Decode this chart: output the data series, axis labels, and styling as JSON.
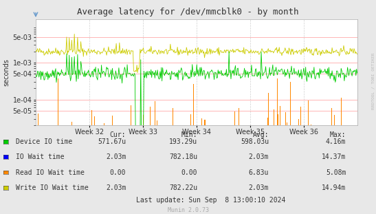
{
  "title": "Average latency for /dev/mmcblk0 - by month",
  "ylabel": "seconds",
  "background_color": "#e8e8e8",
  "plot_bg_color": "#ffffff",
  "grid_h_color": "#ff9999",
  "grid_v_color": "#cccccc",
  "x_weeks": [
    "Week 32",
    "Week 33",
    "Week 34",
    "Week 35",
    "Week 36"
  ],
  "yticks": [
    5e-05,
    0.0001,
    0.0005,
    0.001,
    0.005
  ],
  "ytick_labels": [
    "5e-05",
    "1e-04",
    "5e-04",
    "1e-03",
    "5e-03"
  ],
  "legend_entries": [
    {
      "label": "Device IO time",
      "color": "#00cc00"
    },
    {
      "label": "IO Wait time",
      "color": "#0000ff"
    },
    {
      "label": "Read IO Wait time",
      "color": "#ff8800"
    },
    {
      "label": "Write IO Wait time",
      "color": "#cccc00"
    }
  ],
  "table_headers": [
    "Cur:",
    "Min:",
    "Avg:",
    "Max:"
  ],
  "table_values": [
    [
      "571.67u",
      "193.29u",
      "598.03u",
      "4.16m"
    ],
    [
      "2.03m",
      "782.18u",
      "2.03m",
      "14.37m"
    ],
    [
      "0.00",
      "0.00",
      "6.83u",
      "5.08m"
    ],
    [
      "2.03m",
      "782.22u",
      "2.03m",
      "14.94m"
    ]
  ],
  "footer": "Last update: Sun Sep  8 13:00:10 2024",
  "watermark": "Munin 2.0.73",
  "right_label": "RRDTOOL / TOBI OETIKER",
  "green_color": "#00cc00",
  "orange_color": "#ff8800",
  "yellow_color": "#cccc00",
  "blue_color": "#0000ff",
  "spine_color": "#aaaaaa",
  "text_color": "#333333",
  "n_points": 500
}
